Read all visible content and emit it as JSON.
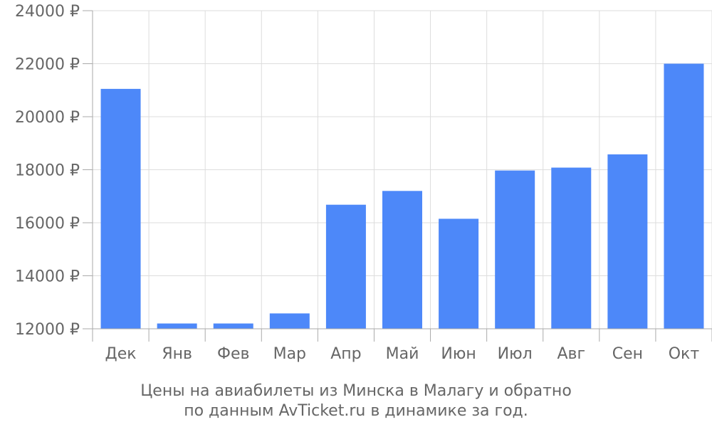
{
  "chart_data": {
    "type": "bar",
    "categories": [
      "Дек",
      "Янв",
      "Фев",
      "Мар",
      "Апр",
      "Май",
      "Июн",
      "Июл",
      "Авг",
      "Сен",
      "Окт"
    ],
    "values": [
      21050,
      12200,
      12200,
      12580,
      16680,
      17200,
      16150,
      17970,
      18080,
      18580,
      22000
    ],
    "ylim": [
      12000,
      24000
    ],
    "yticks": [
      12000,
      14000,
      16000,
      18000,
      20000,
      22000,
      24000
    ],
    "ytick_labels": [
      "12000 ₽",
      "14000 ₽",
      "16000 ₽",
      "18000 ₽",
      "20000 ₽",
      "22000 ₽",
      "24000 ₽"
    ],
    "caption_line1": "Цены на авиабилеты из Минска в Малагу и обратно",
    "caption_line2": "по данным AvTicket.ru в динамике за год.",
    "grid": true,
    "bar_color": "#4d88f9",
    "grid_color": "#dddddd",
    "text_color": "#666666"
  }
}
